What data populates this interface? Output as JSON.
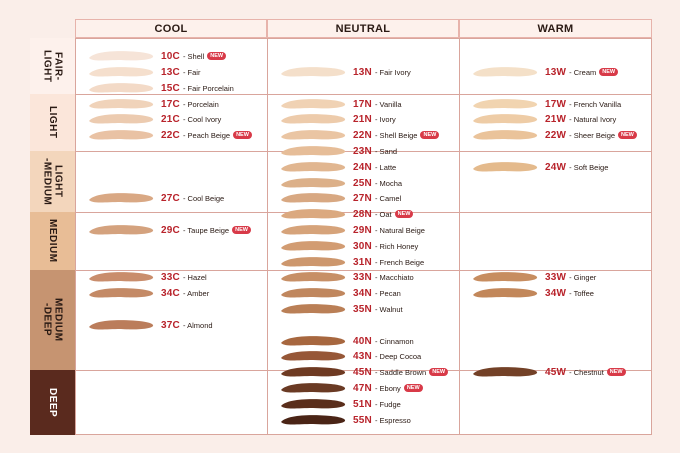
{
  "columns": [
    {
      "key": "cool",
      "label": "COOL"
    },
    {
      "key": "neutral",
      "label": "NEUTRAL"
    },
    {
      "key": "warm",
      "label": "WARM"
    }
  ],
  "bands": [
    {
      "label": "FAIR-\nLIGHT",
      "bg": "#fdf1ec",
      "fg": "#2a1a14"
    },
    {
      "label": "LIGHT",
      "bg": "#fbe6da",
      "fg": "#2a1a14"
    },
    {
      "label": "LIGHT\n-MEDIUM",
      "bg": "#f3d6bc",
      "fg": "#2a1a14"
    },
    {
      "label": "MEDIUM",
      "bg": "#e8bd96",
      "fg": "#2a1a14"
    },
    {
      "label": "MEDIUM\n-DEEP",
      "bg": "#c69471",
      "fg": "#2a1a14"
    },
    {
      "label": "DEEP",
      "bg": "#5a2a1e",
      "fg": "#ffffff"
    }
  ],
  "new_badge": "NEW",
  "shades": [
    {
      "code": "10C",
      "name": "Shell",
      "tone": "cool",
      "new": true,
      "color": "#f6e4d8"
    },
    {
      "code": "13C",
      "name": "Fair",
      "tone": "cool",
      "new": false,
      "color": "#f5dfcd"
    },
    {
      "code": "15C",
      "name": "Fair Porcelain",
      "tone": "cool",
      "new": false,
      "color": "#f3dac7"
    },
    {
      "code": "17C",
      "name": "Porcelain",
      "tone": "cool",
      "new": false,
      "color": "#f0d3ba"
    },
    {
      "code": "21C",
      "name": "Cool Ivory",
      "tone": "cool",
      "new": false,
      "color": "#eccbb0"
    },
    {
      "code": "22C",
      "name": "Peach Beige",
      "tone": "cool",
      "new": true,
      "color": "#e9c2a4"
    },
    {
      "code": "27C",
      "name": "Cool Beige",
      "tone": "cool",
      "new": false,
      "color": "#d9a884"
    },
    {
      "code": "29C",
      "name": "Taupe Beige",
      "tone": "cool",
      "new": true,
      "color": "#d4a27e"
    },
    {
      "code": "33C",
      "name": "Hazel",
      "tone": "cool",
      "new": false,
      "color": "#c98d6c"
    },
    {
      "code": "34C",
      "name": "Amber",
      "tone": "cool",
      "new": false,
      "color": "#c48a66"
    },
    {
      "code": "37C",
      "name": "Almond",
      "tone": "cool",
      "new": false,
      "color": "#bb7d5b"
    },
    {
      "code": "13N",
      "name": "Fair Ivory",
      "tone": "neutral",
      "new": false,
      "color": "#f4dfca"
    },
    {
      "code": "17N",
      "name": "Vanilla",
      "tone": "neutral",
      "new": false,
      "color": "#f0d2b4"
    },
    {
      "code": "21N",
      "name": "Ivory",
      "tone": "neutral",
      "new": false,
      "color": "#edcbab"
    },
    {
      "code": "22N",
      "name": "Shell Beige",
      "tone": "neutral",
      "new": true,
      "color": "#eac5a3"
    },
    {
      "code": "23N",
      "name": "Sand",
      "tone": "neutral",
      "new": false,
      "color": "#e6bd98"
    },
    {
      "code": "24N",
      "name": "Latte",
      "tone": "neutral",
      "new": false,
      "color": "#e1b690"
    },
    {
      "code": "25N",
      "name": "Mocha",
      "tone": "neutral",
      "new": false,
      "color": "#dcb089"
    },
    {
      "code": "27N",
      "name": "Camel",
      "tone": "neutral",
      "new": false,
      "color": "#d8a882"
    },
    {
      "code": "28N",
      "name": "Oat",
      "tone": "neutral",
      "new": true,
      "color": "#dba97f"
    },
    {
      "code": "29N",
      "name": "Natural Beige",
      "tone": "neutral",
      "new": false,
      "color": "#d6a37a"
    },
    {
      "code": "30N",
      "name": "Rich Honey",
      "tone": "neutral",
      "new": false,
      "color": "#d29c72"
    },
    {
      "code": "31N",
      "name": "French Beige",
      "tone": "neutral",
      "new": false,
      "color": "#cd976d"
    },
    {
      "code": "33N",
      "name": "Macchiato",
      "tone": "neutral",
      "new": false,
      "color": "#c78f66"
    },
    {
      "code": "34N",
      "name": "Pecan",
      "tone": "neutral",
      "new": false,
      "color": "#c0875e"
    },
    {
      "code": "35N",
      "name": "Walnut",
      "tone": "neutral",
      "new": false,
      "color": "#ba7f56"
    },
    {
      "code": "40N",
      "name": "Cinnamon",
      "tone": "neutral",
      "new": false,
      "color": "#a7673f"
    },
    {
      "code": "43N",
      "name": "Deep Cocoa",
      "tone": "neutral",
      "new": false,
      "color": "#965737"
    },
    {
      "code": "45N",
      "name": "Saddle Brown",
      "tone": "neutral",
      "new": true,
      "color": "#6e3a22"
    },
    {
      "code": "47N",
      "name": "Ebony",
      "tone": "neutral",
      "new": true,
      "color": "#6a3a24"
    },
    {
      "code": "51N",
      "name": "Fudge",
      "tone": "neutral",
      "new": false,
      "color": "#5a2e1b"
    },
    {
      "code": "55N",
      "name": "Espresso",
      "tone": "neutral",
      "new": false,
      "color": "#4a2416"
    },
    {
      "code": "13W",
      "name": "Cream",
      "tone": "warm",
      "new": true,
      "color": "#f4e0c8"
    },
    {
      "code": "17W",
      "name": "French Vanilla",
      "tone": "warm",
      "new": false,
      "color": "#f1d4b0"
    },
    {
      "code": "21W",
      "name": "Natural Ivory",
      "tone": "warm",
      "new": false,
      "color": "#eecca6"
    },
    {
      "code": "22W",
      "name": "Sheer Beige",
      "tone": "warm",
      "new": true,
      "color": "#eac39a"
    },
    {
      "code": "24W",
      "name": "Soft Beige",
      "tone": "warm",
      "new": false,
      "color": "#e4ba8c"
    },
    {
      "code": "33W",
      "name": "Ginger",
      "tone": "warm",
      "new": false,
      "color": "#c78d60"
    },
    {
      "code": "34W",
      "name": "Toffee",
      "tone": "warm",
      "new": false,
      "color": "#c2875a"
    },
    {
      "code": "45W",
      "name": "Chestnut",
      "tone": "warm",
      "new": true,
      "color": "#734127"
    }
  ]
}
